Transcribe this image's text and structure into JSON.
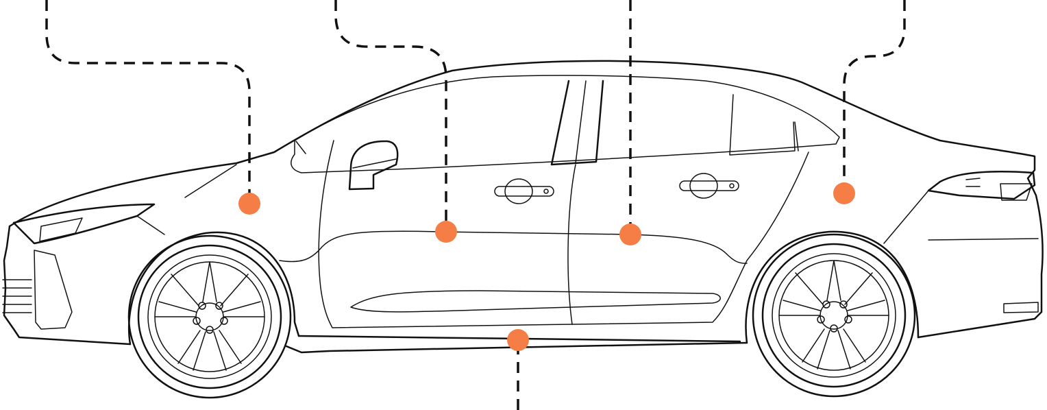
{
  "diagram": {
    "vehicle": "sedan",
    "view": "side-profile",
    "colors": {
      "line": "#111111",
      "marker": "#F47E45",
      "background": "#FFFFFF"
    },
    "markers": [
      {
        "id": "front-fender",
        "icon": "dot"
      },
      {
        "id": "front-door",
        "icon": "dot"
      },
      {
        "id": "rear-door",
        "icon": "dot"
      },
      {
        "id": "rear-quarter-panel",
        "icon": "dot"
      },
      {
        "id": "rocker-panel",
        "icon": "dot"
      }
    ]
  }
}
